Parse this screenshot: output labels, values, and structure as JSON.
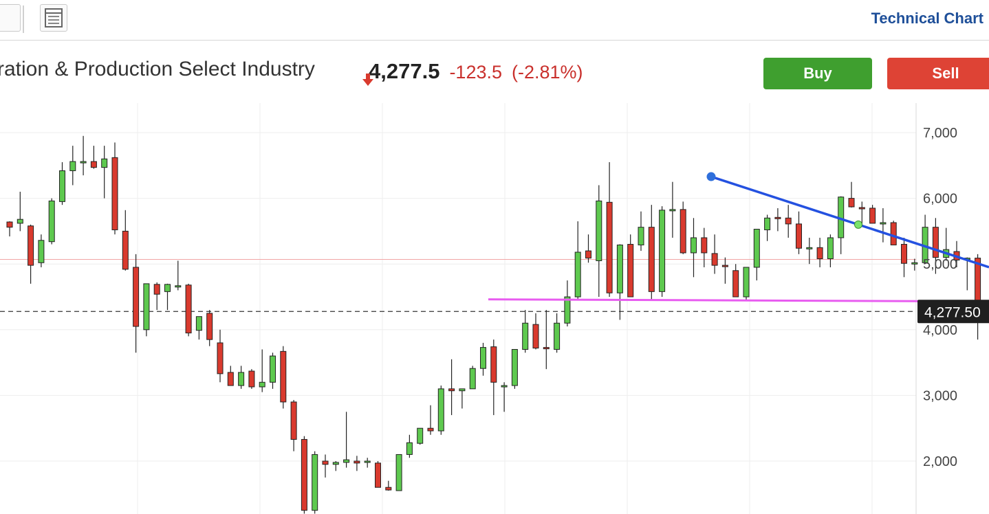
{
  "toolbar": {
    "title": "Technical Chart"
  },
  "header": {
    "instrument": "ration & Production Select Industry",
    "price": "4,277.5",
    "change": "-123.5",
    "change_pct": "(-2.81%)",
    "buy_label": "Buy",
    "sell_label": "Sell"
  },
  "colors": {
    "up": "#5ec94f",
    "down": "#d93a2e",
    "down_text": "#c9302c",
    "trend_blue": "#2451e0",
    "support_magenta": "#e85cf0",
    "buy": "#3f9f2f",
    "sell": "#de4335"
  },
  "chart_data": {
    "type": "candlestick",
    "ylim": [
      1200,
      7500
    ],
    "yticks": [
      "7,000",
      "6,000",
      "5,000",
      "4,000",
      "3,000",
      "2,000"
    ],
    "ytick_values": [
      7000,
      6000,
      5000,
      4000,
      3000,
      2000
    ],
    "last_price_label": "4,277.50",
    "last_price": 4277.5,
    "reference_level": 5070,
    "candles": [
      [
        5640,
        5650,
        5420,
        5560
      ],
      [
        5620,
        6100,
        5500,
        5680
      ],
      [
        5580,
        5600,
        4700,
        4980
      ],
      [
        5020,
        5450,
        4950,
        5360
      ],
      [
        5340,
        6000,
        5300,
        5960
      ],
      [
        5950,
        6550,
        5900,
        6420
      ],
      [
        6420,
        6800,
        6200,
        6560
      ],
      [
        6560,
        6950,
        6350,
        6560
      ],
      [
        6560,
        6800,
        6450,
        6470
      ],
      [
        6470,
        6800,
        6000,
        6600
      ],
      [
        6620,
        6850,
        5450,
        5520
      ],
      [
        5500,
        5820,
        4900,
        4920
      ],
      [
        4950,
        5150,
        3650,
        4050
      ],
      [
        4000,
        4700,
        3900,
        4700
      ],
      [
        4690,
        4720,
        4300,
        4540
      ],
      [
        4580,
        4700,
        4300,
        4690
      ],
      [
        4670,
        5050,
        4600,
        4670
      ],
      [
        4680,
        4700,
        3900,
        3950
      ],
      [
        3990,
        4200,
        3850,
        4200
      ],
      [
        4250,
        4300,
        3750,
        3850
      ],
      [
        3800,
        4000,
        3200,
        3330
      ],
      [
        3350,
        3450,
        3200,
        3150
      ],
      [
        3150,
        3450,
        3100,
        3350
      ],
      [
        3370,
        3400,
        3100,
        3130
      ],
      [
        3130,
        3700,
        3050,
        3200
      ],
      [
        3200,
        3650,
        3100,
        3600
      ],
      [
        3670,
        3750,
        2800,
        2900
      ],
      [
        2900,
        2930,
        2150,
        2330
      ],
      [
        2330,
        2380,
        1200,
        1250
      ],
      [
        1250,
        2150,
        1200,
        2100
      ],
      [
        2000,
        2100,
        1750,
        1950
      ],
      [
        1950,
        2000,
        1850,
        1980
      ],
      [
        1980,
        2750,
        1900,
        2020
      ],
      [
        2000,
        2080,
        1850,
        1970
      ],
      [
        1980,
        2050,
        1900,
        2000
      ],
      [
        1970,
        2000,
        1600,
        1600
      ],
      [
        1600,
        1700,
        1550,
        1560
      ],
      [
        1550,
        2100,
        1550,
        2100
      ],
      [
        2100,
        2400,
        2050,
        2280
      ],
      [
        2270,
        2500,
        2250,
        2500
      ],
      [
        2500,
        2850,
        2400,
        2460
      ],
      [
        2460,
        3150,
        2400,
        3100
      ],
      [
        3100,
        3550,
        2700,
        3070
      ],
      [
        3070,
        3100,
        2800,
        3100
      ],
      [
        3100,
        3450,
        3100,
        3410
      ],
      [
        3410,
        3800,
        3300,
        3730
      ],
      [
        3740,
        3850,
        2700,
        3200
      ],
      [
        3150,
        3200,
        2750,
        3150
      ],
      [
        3150,
        3700,
        3100,
        3700
      ],
      [
        3700,
        4300,
        3650,
        4100
      ],
      [
        4080,
        4250,
        3700,
        3720
      ],
      [
        3730,
        4300,
        3400,
        3720
      ],
      [
        3700,
        4250,
        3650,
        4100
      ],
      [
        4100,
        4750,
        4050,
        4500
      ],
      [
        4500,
        5650,
        4450,
        5180
      ],
      [
        5200,
        5450,
        5020,
        5090
      ],
      [
        5050,
        6200,
        4500,
        5960
      ],
      [
        5940,
        6550,
        4500,
        4560
      ],
      [
        4560,
        5300,
        4150,
        5290
      ],
      [
        5300,
        5450,
        4500,
        4500
      ],
      [
        5290,
        5800,
        5200,
        5560
      ],
      [
        5560,
        5900,
        4450,
        4580
      ],
      [
        4580,
        5880,
        4500,
        5820
      ],
      [
        5820,
        6250,
        5400,
        5830
      ],
      [
        5830,
        5950,
        5150,
        5170
      ],
      [
        5170,
        5700,
        4800,
        5400
      ],
      [
        5400,
        5550,
        4950,
        5170
      ],
      [
        5160,
        5450,
        4850,
        4980
      ],
      [
        4980,
        5100,
        4700,
        4970
      ],
      [
        4900,
        5000,
        4500,
        4500
      ],
      [
        4500,
        4950,
        4450,
        4950
      ],
      [
        4950,
        5520,
        4750,
        5530
      ],
      [
        5520,
        5750,
        5350,
        5700
      ],
      [
        5710,
        5850,
        5500,
        5700
      ],
      [
        5700,
        5900,
        5400,
        5610
      ],
      [
        5610,
        5800,
        5150,
        5240
      ],
      [
        5250,
        5400,
        5000,
        5250
      ],
      [
        5250,
        5400,
        4950,
        5080
      ],
      [
        5080,
        5450,
        4950,
        5400
      ],
      [
        5400,
        6030,
        5150,
        6020
      ],
      [
        6000,
        6250,
        5860,
        5870
      ],
      [
        5860,
        5950,
        5600,
        5850
      ],
      [
        5850,
        5900,
        5620,
        5620
      ],
      [
        5620,
        5850,
        5330,
        5630
      ],
      [
        5630,
        5660,
        5330,
        5290
      ],
      [
        5300,
        5400,
        4800,
        5010
      ],
      [
        5020,
        5080,
        4900,
        5020
      ],
      [
        5020,
        5750,
        5000,
        5560
      ],
      [
        5560,
        5700,
        4850,
        5100
      ],
      [
        5100,
        5550,
        5050,
        5220
      ],
      [
        5190,
        5350,
        4950,
        5060
      ],
      [
        5070,
        5100,
        4600,
        5090
      ],
      [
        5090,
        5150,
        3850,
        4280
      ]
    ],
    "support_line": [
      [
        4462,
        4430
      ]
    ],
    "trend_line": [
      [
        6330,
        5600,
        5160
      ]
    ]
  }
}
